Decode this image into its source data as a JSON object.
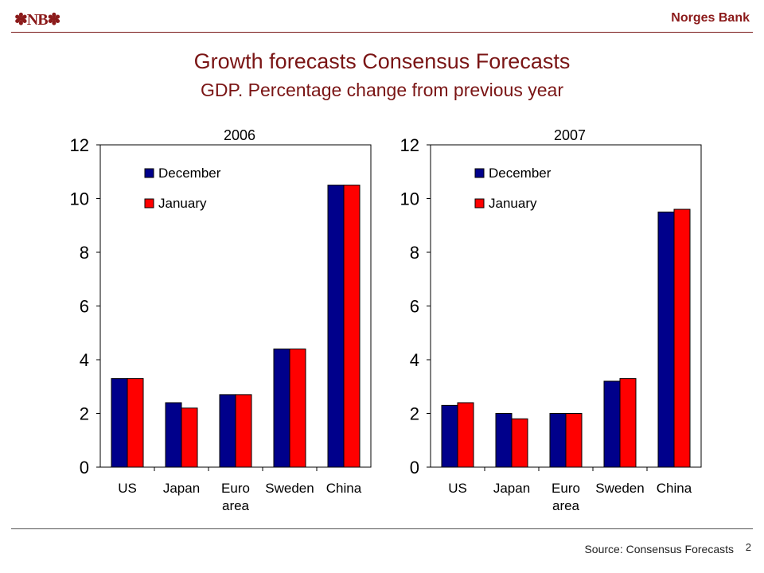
{
  "header": {
    "logo": "✽NB✽",
    "bank_name": "Norges Bank"
  },
  "title": "Growth forecasts Consensus Forecasts",
  "subtitle": "GDP. Percentage change from previous year",
  "footer": {
    "source": "Source: Consensus Forecasts",
    "page_number": "2"
  },
  "colors": {
    "december": "#00008b",
    "january": "#ff0000",
    "title": "#7a1515"
  },
  "chart_data": [
    {
      "type": "bar",
      "title": "2006",
      "categories": [
        [
          "US"
        ],
        [
          "Japan"
        ],
        [
          "Euro",
          "area"
        ],
        [
          "Sweden"
        ],
        [
          "China"
        ]
      ],
      "series": [
        {
          "name": "December",
          "values": [
            3.3,
            2.4,
            2.7,
            4.4,
            10.5
          ]
        },
        {
          "name": "January",
          "values": [
            3.3,
            2.2,
            2.7,
            4.4,
            10.5
          ]
        }
      ],
      "ylim": [
        0,
        12
      ],
      "yticks": [
        0,
        2,
        4,
        6,
        8,
        10,
        12
      ],
      "legend": "top-left",
      "grid": false
    },
    {
      "type": "bar",
      "title": "2007",
      "categories": [
        [
          "US"
        ],
        [
          "Japan"
        ],
        [
          "Euro",
          "area"
        ],
        [
          "Sweden"
        ],
        [
          "China"
        ]
      ],
      "series": [
        {
          "name": "December",
          "values": [
            2.3,
            2.0,
            2.0,
            3.2,
            9.5
          ]
        },
        {
          "name": "January",
          "values": [
            2.4,
            1.8,
            2.0,
            3.3,
            9.6
          ]
        }
      ],
      "ylim": [
        0,
        12
      ],
      "yticks": [
        0,
        2,
        4,
        6,
        8,
        10,
        12
      ],
      "legend": "top-left",
      "grid": false
    }
  ]
}
